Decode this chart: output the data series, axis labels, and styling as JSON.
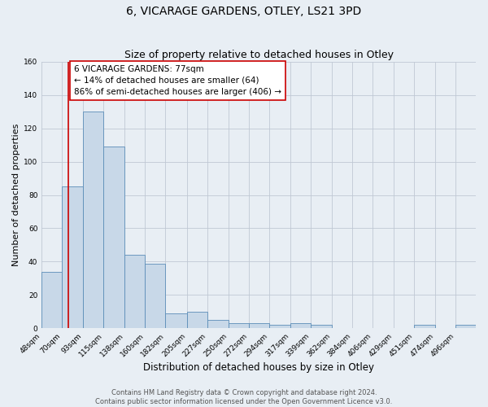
{
  "title": "6, VICARAGE GARDENS, OTLEY, LS21 3PD",
  "subtitle": "Size of property relative to detached houses in Otley",
  "xlabel": "Distribution of detached houses by size in Otley",
  "ylabel": "Number of detached properties",
  "bin_labels": [
    "48sqm",
    "70sqm",
    "93sqm",
    "115sqm",
    "138sqm",
    "160sqm",
    "182sqm",
    "205sqm",
    "227sqm",
    "250sqm",
    "272sqm",
    "294sqm",
    "317sqm",
    "339sqm",
    "362sqm",
    "384sqm",
    "406sqm",
    "429sqm",
    "451sqm",
    "474sqm",
    "496sqm"
  ],
  "bin_edges": [
    48,
    70,
    93,
    115,
    138,
    160,
    182,
    205,
    227,
    250,
    272,
    294,
    317,
    339,
    362,
    384,
    406,
    429,
    451,
    474,
    496
  ],
  "bar_heights": [
    34,
    85,
    130,
    109,
    44,
    39,
    9,
    10,
    5,
    3,
    3,
    2,
    3,
    2,
    0,
    0,
    0,
    0,
    2,
    0,
    2
  ],
  "bar_color": "#c8d8e8",
  "bar_edgecolor": "#5b8db8",
  "vline_color": "#cc0000",
  "vline_x": 77,
  "ylim": [
    0,
    160
  ],
  "yticks": [
    0,
    20,
    40,
    60,
    80,
    100,
    120,
    140,
    160
  ],
  "annotation_text": "6 VICARAGE GARDENS: 77sqm\n← 14% of detached houses are smaller (64)\n86% of semi-detached houses are larger (406) →",
  "annotation_box_edgecolor": "#cc0000",
  "annotation_box_facecolor": "#ffffff",
  "footer_line1": "Contains HM Land Registry data © Crown copyright and database right 2024.",
  "footer_line2": "Contains public sector information licensed under the Open Government Licence v3.0.",
  "background_color": "#e8eef4",
  "plot_background_color": "#e8eef4",
  "grid_color": "#c0c8d4",
  "title_fontsize": 10,
  "subtitle_fontsize": 9,
  "xlabel_fontsize": 8.5,
  "ylabel_fontsize": 8,
  "tick_fontsize": 6.5,
  "annotation_fontsize": 7.5,
  "footer_fontsize": 6
}
